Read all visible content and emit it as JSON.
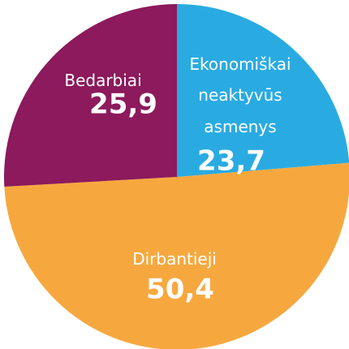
{
  "chart_data": {
    "type": "pie",
    "categories": [
      "Ekonomiškai neaktyvūs asmenys",
      "Dirbantieji",
      "Bedarbiai"
    ],
    "values": [
      23.7,
      50.4,
      25.9
    ],
    "value_labels": [
      "23,7",
      "50,4",
      "25,9"
    ],
    "colors": [
      "#29abe2",
      "#f6a83f",
      "#8c1a5c"
    ]
  }
}
